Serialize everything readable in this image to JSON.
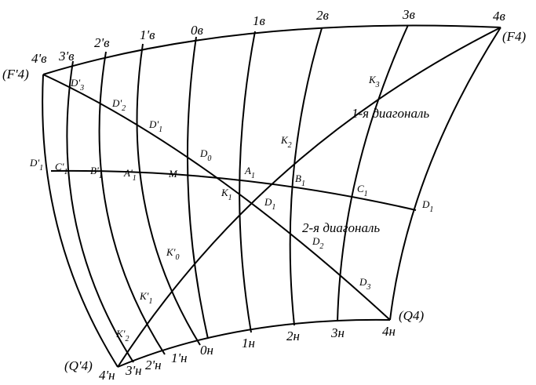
{
  "corners": [
    "(F'4)",
    "(F4)",
    "(Q'4)",
    "(Q4)"
  ],
  "top_marks": [
    "4'в",
    "3'в",
    "2'в",
    "1'в",
    "0в",
    "1в",
    "2в",
    "3в",
    "4в"
  ],
  "bottom_marks": [
    "4'н",
    "3'н",
    "2'н",
    "1'н",
    "0н",
    "1н",
    "2н",
    "3н",
    "4н"
  ],
  "points": [
    {
      "text": "D'",
      "sub": "3"
    },
    {
      "text": "D'",
      "sub": "2"
    },
    {
      "text": "D'",
      "sub": "1"
    },
    {
      "text": "D",
      "sub": "0"
    },
    {
      "text": "D'",
      "sub": "1"
    },
    {
      "text": "C'",
      "sub": "1"
    },
    {
      "text": "B'",
      "sub": "1"
    },
    {
      "text": "A'",
      "sub": "1"
    },
    {
      "text": "M"
    },
    {
      "text": "A",
      "sub": "1"
    },
    {
      "text": "K",
      "sub": "1"
    },
    {
      "text": "B",
      "sub": "1"
    },
    {
      "text": "C",
      "sub": "1"
    },
    {
      "text": "D",
      "sub": "1"
    },
    {
      "text": "D",
      "sub": "1"
    },
    {
      "text": "D",
      "sub": "2"
    },
    {
      "text": "D",
      "sub": "3"
    },
    {
      "text": "K",
      "sub": "3"
    },
    {
      "text": "K",
      "sub": "2"
    },
    {
      "text": "K'",
      "sub": "0"
    },
    {
      "text": "K'",
      "sub": "1"
    },
    {
      "text": "K'",
      "sub": "2"
    }
  ],
  "diagonals": [
    "1-я диагональ",
    "2-я диагональ"
  ]
}
